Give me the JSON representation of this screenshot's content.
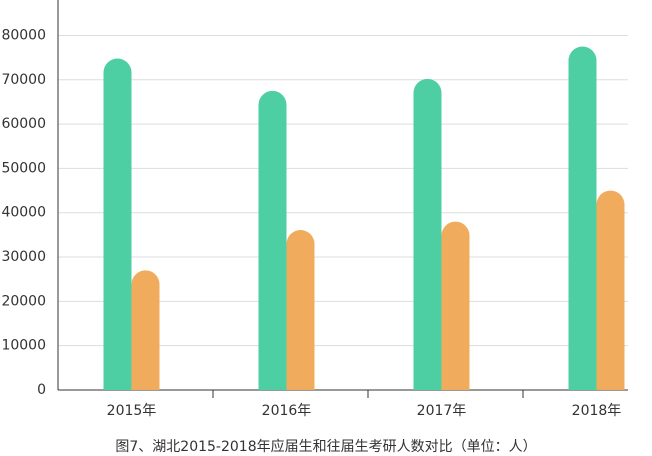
{
  "chart_data": {
    "type": "bar",
    "title": "图7、湖北2015-2018年应届生和往届生考研人数对比（单位：人）",
    "categories": [
      "2015年",
      "2016年",
      "2017年",
      "2018年"
    ],
    "series": [
      {
        "color": "#4ecfa3",
        "values": [
          74800,
          67500,
          70200,
          77500
        ]
      },
      {
        "color": "#f0ac5c",
        "values": [
          27000,
          36100,
          38000,
          45000
        ]
      }
    ],
    "ylim": [
      0,
      88000
    ],
    "yticks": [
      0,
      10000,
      20000,
      30000,
      40000,
      50000,
      60000,
      70000,
      80000
    ],
    "grid": true
  }
}
